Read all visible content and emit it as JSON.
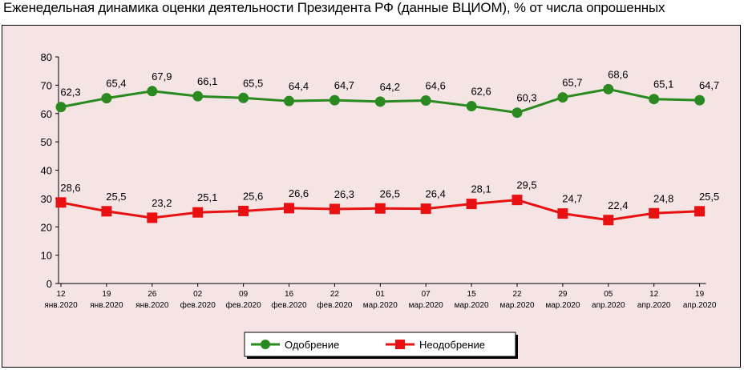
{
  "title": "Еженедельная динамика оценки деятельности Президента РФ (данные ВЦИОМ), % от числа опрошенных",
  "colors": {
    "background": "#f4e4e4",
    "approve": "#2a8a1f",
    "disapprove": "#e81010"
  },
  "chart_data": {
    "type": "line",
    "title": "Еженедельная динамика оценки деятельности Президента РФ (данные ВЦИОМ), % от числа опрошенных",
    "xlabel": "",
    "ylabel": "",
    "ylim": [
      0,
      80
    ],
    "yticks": [
      0,
      10,
      20,
      30,
      40,
      50,
      60,
      70,
      80
    ],
    "grid": false,
    "legend_position": "bottom",
    "categories": [
      [
        "12",
        "янв.2020"
      ],
      [
        "19",
        "янв.2020"
      ],
      [
        "26",
        "янв.2020"
      ],
      [
        "02",
        "фев.2020"
      ],
      [
        "09",
        "фев.2020"
      ],
      [
        "16",
        "фев.2020"
      ],
      [
        "22",
        "фев.2020"
      ],
      [
        "01",
        "мар.2020"
      ],
      [
        "07",
        "мар.2020"
      ],
      [
        "15",
        "мар.2020"
      ],
      [
        "22",
        "мар.2020"
      ],
      [
        "29",
        "мар.2020"
      ],
      [
        "05",
        "апр.2020"
      ],
      [
        "12",
        "апр.2020"
      ],
      [
        "19",
        "апр.2020"
      ]
    ],
    "series": [
      {
        "name": "Одобрение",
        "marker": "circle",
        "color": "#2a8a1f",
        "values": [
          62.3,
          65.4,
          67.9,
          66.1,
          65.5,
          64.4,
          64.7,
          64.2,
          64.6,
          62.6,
          60.3,
          65.7,
          68.6,
          65.1,
          64.7
        ],
        "labels": [
          "62,3",
          "65,4",
          "67,9",
          "66,1",
          "65,5",
          "64,4",
          "64,7",
          "64,2",
          "64,6",
          "62,6",
          "60,3",
          "65,7",
          "68,6",
          "65,1",
          "64,7"
        ]
      },
      {
        "name": "Неодобрение",
        "marker": "square",
        "color": "#e81010",
        "values": [
          28.6,
          25.5,
          23.2,
          25.1,
          25.6,
          26.6,
          26.3,
          26.5,
          26.4,
          28.1,
          29.5,
          24.7,
          22.4,
          24.8,
          25.5
        ],
        "labels": [
          "28,6",
          "25,5",
          "23,2",
          "25,1",
          "25,6",
          "26,6",
          "26,3",
          "26,5",
          "26,4",
          "28,1",
          "29,5",
          "24,7",
          "22,4",
          "24,8",
          "25,5"
        ]
      }
    ]
  }
}
